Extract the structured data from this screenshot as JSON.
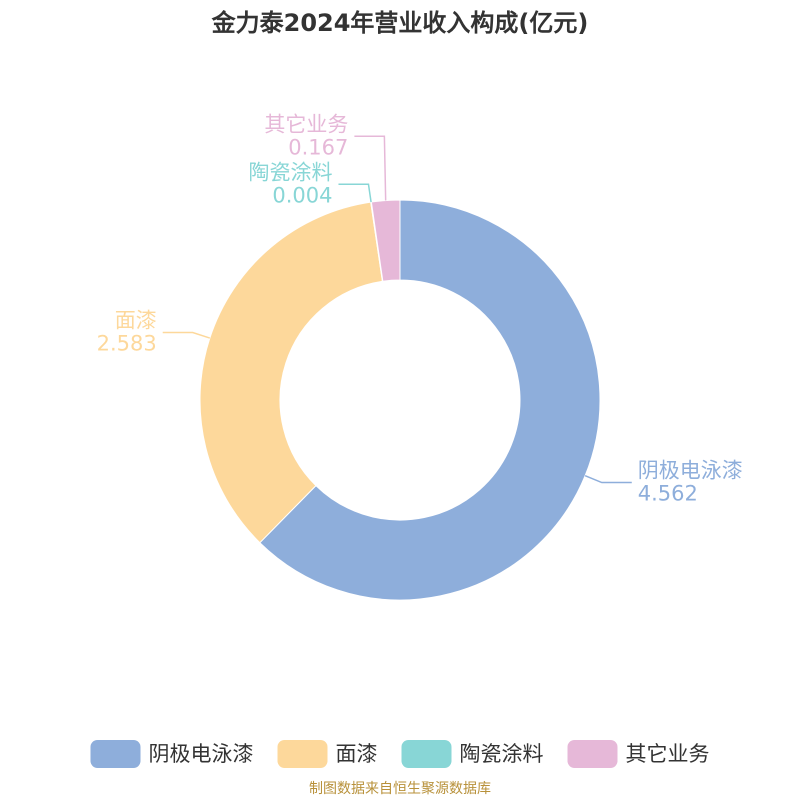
{
  "chart_data": {
    "type": "donut",
    "title": "金力泰2024年营业收入构成(亿元)",
    "categories": [
      "阴极电泳漆",
      "面漆",
      "陶瓷涂料",
      "其它业务"
    ],
    "values": [
      4.562,
      2.583,
      0.004,
      0.167
    ],
    "colors": [
      "#8eaedb",
      "#fdd89b",
      "#88d6d6",
      "#e6b8d8"
    ],
    "source": "制图数据来自恒生聚源数据库"
  }
}
